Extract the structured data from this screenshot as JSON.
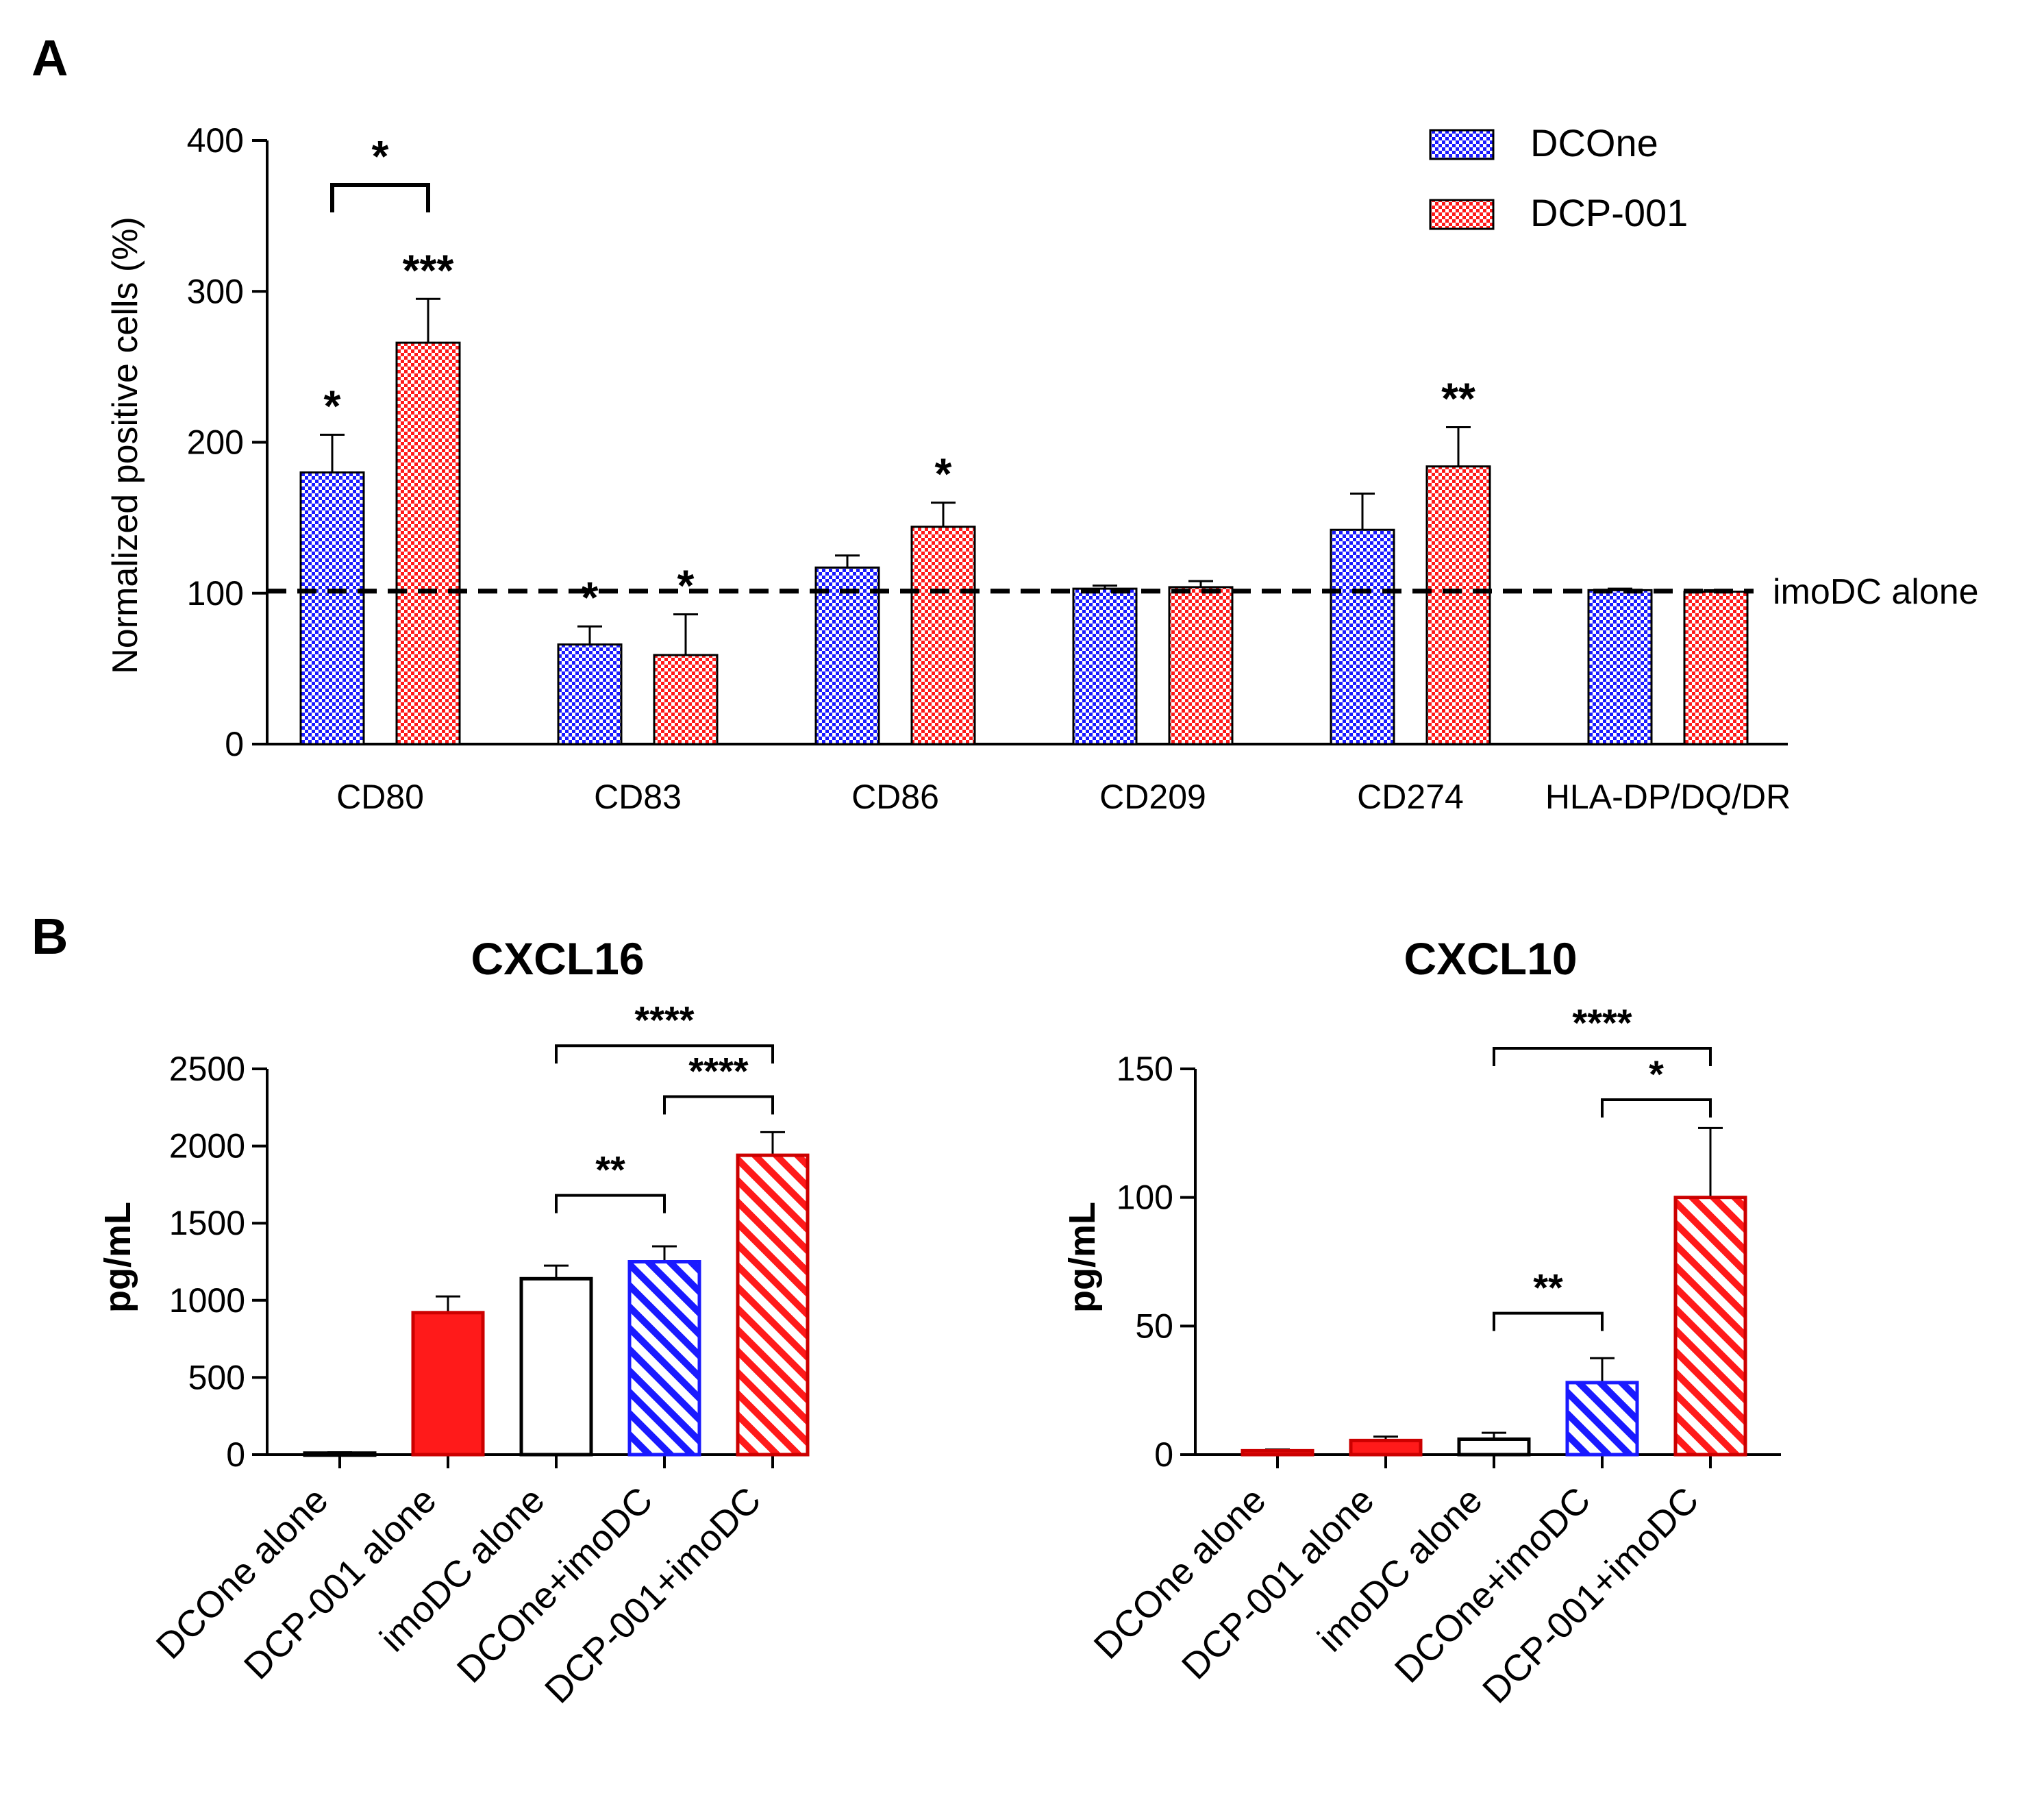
{
  "panels": {
    "a": "A",
    "b": "B"
  },
  "colors": {
    "dcone": "#1a1aff",
    "dcp001": "#ff1a1a",
    "axis": "#000000",
    "white": "#ffffff"
  },
  "chart_data": [
    {
      "id": "panel-a",
      "type": "bar",
      "title": "",
      "xlabel": "",
      "ylabel": "Normalized positive cells (%)",
      "ylim": [
        0,
        400
      ],
      "yticks": [
        0,
        100,
        200,
        300,
        400
      ],
      "categories": [
        "CD80",
        "CD83",
        "CD86",
        "CD209",
        "CD274",
        "HLA-DP/DQ/DR"
      ],
      "series": [
        {
          "name": "DCOne",
          "pattern": "checker",
          "color": "#1a1aff",
          "values": [
            180,
            66,
            117,
            103,
            142,
            102
          ],
          "errors": [
            25,
            12,
            8,
            2,
            24,
            1
          ],
          "significance": [
            "*",
            "*",
            "",
            "",
            "",
            ""
          ]
        },
        {
          "name": "DCP-001",
          "pattern": "checker",
          "color": "#ff1a1a",
          "values": [
            266,
            59,
            144,
            104,
            184,
            101
          ],
          "errors": [
            29,
            27,
            16,
            4,
            26,
            1
          ],
          "significance": [
            "***",
            "*",
            "*",
            "",
            "**",
            ""
          ]
        }
      ],
      "reference_line": {
        "value": 100,
        "label": "imoDC alone"
      },
      "comparisons": [
        {
          "category": "CD80",
          "label": "*"
        }
      ],
      "legend": {
        "position": "top-right",
        "entries": [
          "DCOne",
          "DCP-001"
        ]
      }
    },
    {
      "id": "cxcl16",
      "type": "bar",
      "title": "CXCL16",
      "xlabel": "",
      "ylabel": "pg/mL",
      "ylim": [
        0,
        2500
      ],
      "yticks": [
        0,
        500,
        1000,
        1500,
        2000,
        2500
      ],
      "categories": [
        "DCOne alone",
        "DCP-001 alone",
        "imoDC alone",
        "DCOne+imoDC",
        "DCP-001+imoDC"
      ],
      "values": [
        10,
        920,
        1140,
        1250,
        1940
      ],
      "errors": [
        5,
        105,
        85,
        100,
        150
      ],
      "styles": [
        "white",
        "red-solid",
        "white",
        "blue-hatch",
        "red-hatch"
      ],
      "comparisons": [
        {
          "from": 2,
          "to": 3,
          "value": 1680,
          "label": "**"
        },
        {
          "from": 3,
          "to": 4,
          "value": 2320,
          "label": "****"
        },
        {
          "from": 2,
          "to": 4,
          "value": 2650,
          "label": "****"
        }
      ]
    },
    {
      "id": "cxcl10",
      "type": "bar",
      "title": "CXCL10",
      "xlabel": "",
      "ylabel": "pg/mL",
      "ylim": [
        0,
        150
      ],
      "yticks": [
        0,
        50,
        100,
        150
      ],
      "categories": [
        "DCOne alone",
        "DCP-001 alone",
        "imoDC alone",
        "DCOne+imoDC",
        "DCP-001+imoDC"
      ],
      "values": [
        1.5,
        5.5,
        6,
        28,
        100
      ],
      "errors": [
        0.5,
        1.5,
        2.5,
        9.5,
        27
      ],
      "styles": [
        "red-solid",
        "red-solid",
        "white",
        "blue-hatch",
        "red-hatch"
      ],
      "comparisons": [
        {
          "from": 2,
          "to": 3,
          "value": 55,
          "label": "**"
        },
        {
          "from": 3,
          "to": 4,
          "value": 138,
          "label": "*"
        },
        {
          "from": 2,
          "to": 4,
          "value": 158,
          "label": "****"
        }
      ]
    }
  ]
}
